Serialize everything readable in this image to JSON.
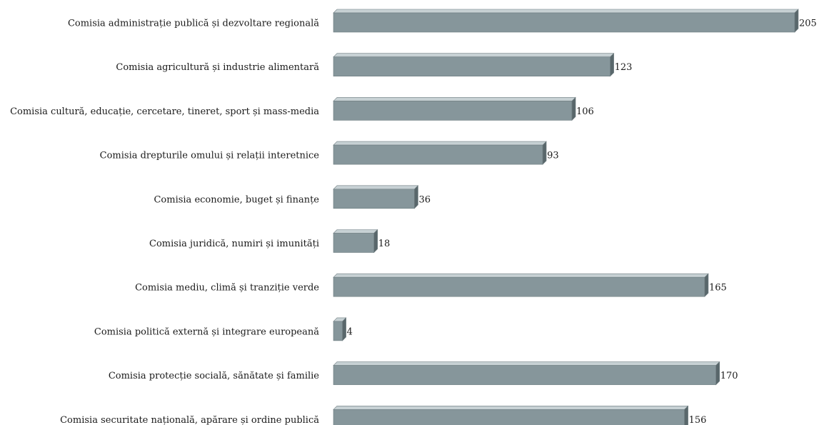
{
  "chart_data": {
    "type": "bar",
    "orientation": "horizontal",
    "style": "3d",
    "categories": [
      "Comisia administrație publică și dezvoltare regională",
      "Comisia agricultură și industrie alimentară",
      "Comisia cultură, educație, cercetare, tineret, sport și mass-media",
      "Comisia drepturile omului și relații interetnice",
      "Comisia economie, buget și finanțe",
      "Comisia juridică, numiri și imunități",
      "Comisia mediu, climă și tranziție verde",
      "Comisia politică externă și integrare europeană",
      "Comisia protecție socială, sănătate și familie",
      "Comisia securitate națională, apărare și ordine publică"
    ],
    "values": [
      205,
      123,
      106,
      93,
      36,
      18,
      165,
      4,
      170,
      156
    ],
    "title": "",
    "xlabel": "",
    "ylabel": "",
    "xlim": [
      0,
      205
    ],
    "grid": false,
    "legend": "none",
    "colors": {
      "front": "#86969b",
      "top": "#c7d1d4",
      "side": "#59676b",
      "edge": "#6f7d81"
    }
  }
}
